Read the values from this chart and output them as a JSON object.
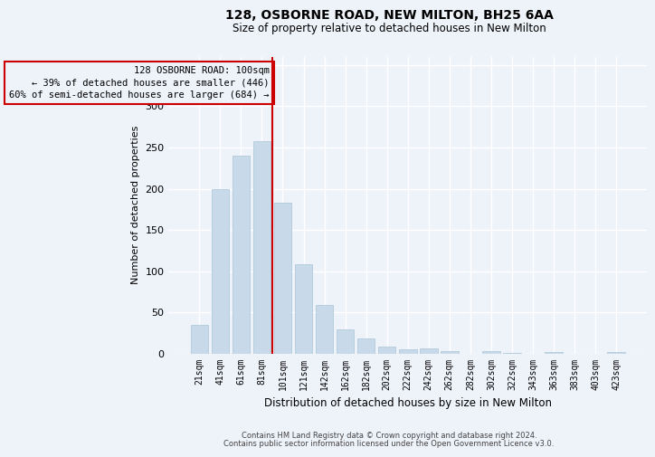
{
  "title": "128, OSBORNE ROAD, NEW MILTON, BH25 6AA",
  "subtitle": "Size of property relative to detached houses in New Milton",
  "xlabel": "Distribution of detached houses by size in New Milton",
  "ylabel": "Number of detached properties",
  "categories": [
    "21sqm",
    "41sqm",
    "61sqm",
    "81sqm",
    "101sqm",
    "121sqm",
    "142sqm",
    "162sqm",
    "182sqm",
    "202sqm",
    "222sqm",
    "242sqm",
    "262sqm",
    "282sqm",
    "302sqm",
    "322sqm",
    "343sqm",
    "363sqm",
    "383sqm",
    "403sqm",
    "423sqm"
  ],
  "values": [
    35,
    199,
    240,
    258,
    183,
    108,
    59,
    30,
    19,
    9,
    6,
    7,
    3,
    0,
    3,
    1,
    0,
    2,
    0,
    0,
    2
  ],
  "bar_color": "#c8d9ea",
  "bar_edgecolor": "#a8c4d8",
  "redline_index": 4,
  "redline_color": "#cc0000",
  "annotation_line1": "128 OSBORNE ROAD: 100sqm",
  "annotation_line2": "← 39% of detached houses are smaller (446)",
  "annotation_line3": "60% of semi-detached houses are larger (684) →",
  "annotation_box_edgecolor": "#cc0000",
  "background_color": "#eef2f9",
  "grid_color": "#ffffff",
  "ylim": [
    0,
    360
  ],
  "yticks": [
    0,
    50,
    100,
    150,
    200,
    250,
    300,
    350
  ],
  "footer1": "Contains HM Land Registry data © Crown copyright and database right 2024.",
  "footer2": "Contains public sector information licensed under the Open Government Licence v3.0."
}
